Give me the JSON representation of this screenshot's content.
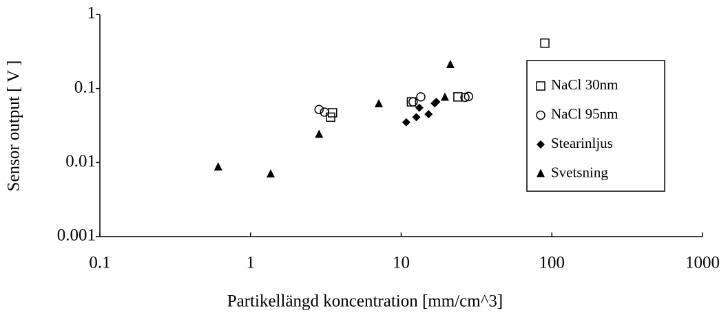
{
  "chart_data": {
    "type": "scatter",
    "x_label": "Partikellängd  koncentration [mm/cm^3]",
    "y_label": "Sensor output [ V ]",
    "xlim": [
      0.1,
      1000
    ],
    "ylim": [
      0.001,
      1
    ],
    "xticks": [
      0.1,
      1,
      10,
      100,
      1000
    ],
    "yticks": [
      0.001,
      0.01,
      0.1,
      1
    ],
    "x_scale": "log",
    "y_scale": "log",
    "legend": "right",
    "series": [
      {
        "name": "NaCl 30nm",
        "color": "#000000",
        "marker": "square",
        "x": [
          3.4,
          3.5,
          11.7,
          23.8,
          89.8
        ],
        "values": [
          0.041,
          0.047,
          0.066,
          0.077,
          0.41
        ]
      },
      {
        "name": "NaCl 95nm",
        "color": "#000000",
        "marker": "circle",
        "x": [
          2.85,
          3.1,
          12.0,
          13.5,
          26.5,
          28
        ],
        "values": [
          0.052,
          0.048,
          0.066,
          0.077,
          0.076,
          0.078
        ]
      },
      {
        "name": "Stearinljus",
        "color": "#000000",
        "marker": "diamond",
        "x": [
          10.8,
          12.6,
          13.2,
          15.2,
          16.7,
          17.1
        ],
        "values": [
          0.035,
          0.041,
          0.055,
          0.045,
          0.063,
          0.066
        ]
      },
      {
        "name": "Svetsning",
        "color": "#000000",
        "marker": "triangle",
        "x": [
          0.61,
          1.36,
          2.85,
          7.1,
          19.5,
          21.2
        ],
        "values": [
          0.0087,
          0.007,
          0.024,
          0.062,
          0.076,
          0.21
        ]
      }
    ]
  }
}
